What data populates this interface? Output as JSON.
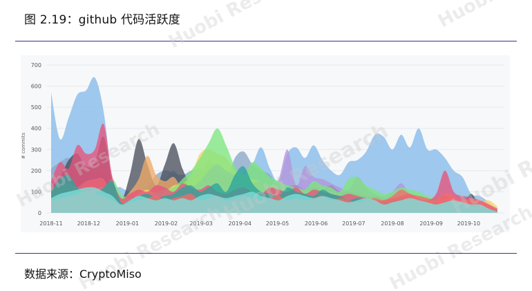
{
  "figure": {
    "title": "图 2.19：github 代码活跃度",
    "source": "数据来源：CryptoMiso",
    "watermark": "Huobi Research"
  },
  "chart_data": {
    "type": "area",
    "title": "",
    "xlabel": "",
    "ylabel": "# commits",
    "ylim": [
      0,
      700
    ],
    "yticks": [
      0,
      100,
      200,
      300,
      400,
      500,
      600,
      700
    ],
    "xticks": [
      "2018-11",
      "2018-12",
      "2019-01",
      "2019-02",
      "2019-03",
      "2019-04",
      "2019-05",
      "2019-06",
      "2019-07",
      "2019-08",
      "2019-09",
      "2019-10"
    ],
    "x": [
      "2018-11-01",
      "2018-11-08",
      "2018-11-15",
      "2018-11-22",
      "2018-11-29",
      "2018-12-06",
      "2018-12-13",
      "2018-12-20",
      "2018-12-27",
      "2019-01-03",
      "2019-01-10",
      "2019-01-17",
      "2019-01-24",
      "2019-01-31",
      "2019-02-07",
      "2019-02-14",
      "2019-02-21",
      "2019-02-28",
      "2019-03-07",
      "2019-03-14",
      "2019-03-21",
      "2019-03-28",
      "2019-04-04",
      "2019-04-11",
      "2019-04-18",
      "2019-04-25",
      "2019-05-02",
      "2019-05-09",
      "2019-05-16",
      "2019-05-23",
      "2019-05-30",
      "2019-06-06",
      "2019-06-13",
      "2019-06-20",
      "2019-06-27",
      "2019-07-04",
      "2019-07-11",
      "2019-07-18",
      "2019-07-25",
      "2019-08-01",
      "2019-08-08",
      "2019-08-15",
      "2019-08-22",
      "2019-08-29",
      "2019-09-05",
      "2019-09-12",
      "2019-09-19",
      "2019-09-26",
      "2019-10-03",
      "2019-10-10",
      "2019-10-17",
      "2019-10-24"
    ],
    "grid": true,
    "legend": "none",
    "series": [
      {
        "color": "#8ec0ea",
        "values": [
          570,
          350,
          450,
          560,
          580,
          640,
          480,
          160,
          120,
          100,
          90,
          110,
          130,
          160,
          200,
          150,
          160,
          180,
          210,
          200,
          190,
          170,
          190,
          230,
          310,
          210,
          150,
          280,
          310,
          260,
          320,
          250,
          200,
          180,
          240,
          250,
          290,
          370,
          360,
          300,
          370,
          310,
          400,
          300,
          300,
          260,
          200,
          170,
          90,
          80,
          50,
          10
        ]
      },
      {
        "color": "#8ba7c8",
        "values": [
          210,
          240,
          260,
          220,
          190,
          180,
          200,
          120,
          60,
          60,
          80,
          120,
          180,
          200,
          190,
          180,
          200,
          210,
          190,
          200,
          150,
          260,
          290,
          230,
          200,
          180,
          120,
          110,
          100,
          90,
          80,
          90,
          80,
          60,
          60,
          70,
          60,
          40,
          30,
          40,
          50,
          60,
          40,
          40,
          40,
          80,
          50,
          80,
          70,
          40,
          20,
          5
        ]
      },
      {
        "color": "#4a4f5e",
        "values": [
          120,
          170,
          250,
          280,
          220,
          240,
          360,
          150,
          60,
          180,
          350,
          230,
          130,
          230,
          330,
          210,
          130,
          120,
          100,
          150,
          130,
          90,
          80,
          110,
          90,
          80,
          100,
          120,
          130,
          110,
          120,
          110,
          130,
          100,
          100,
          90,
          80,
          80,
          70,
          60,
          60,
          70,
          80,
          70,
          60,
          80,
          60,
          40,
          90,
          30,
          10,
          0
        ]
      },
      {
        "color": "#f0a968",
        "values": [
          80,
          90,
          100,
          120,
          150,
          160,
          160,
          80,
          60,
          100,
          160,
          270,
          180,
          150,
          170,
          120,
          160,
          180,
          250,
          200,
          170,
          150,
          130,
          120,
          100,
          90,
          110,
          100,
          120,
          110,
          100,
          90,
          80,
          70,
          70,
          70,
          60,
          50,
          40,
          50,
          50,
          60,
          50,
          40,
          40,
          50,
          60,
          50,
          50,
          40,
          30,
          20
        ]
      },
      {
        "color": "#f2d66a",
        "values": [
          60,
          70,
          80,
          90,
          100,
          110,
          120,
          70,
          50,
          60,
          90,
          110,
          90,
          100,
          130,
          140,
          180,
          280,
          300,
          280,
          260,
          200,
          180,
          160,
          150,
          130,
          120,
          110,
          100,
          90,
          100,
          110,
          100,
          90,
          80,
          80,
          70,
          60,
          60,
          60,
          60,
          70,
          70,
          60,
          50,
          60,
          70,
          60,
          60,
          50,
          60,
          30
        ]
      },
      {
        "color": "#b395dc",
        "values": [
          50,
          60,
          70,
          80,
          90,
          100,
          110,
          60,
          40,
          50,
          70,
          90,
          80,
          90,
          100,
          110,
          120,
          150,
          200,
          230,
          200,
          180,
          160,
          140,
          150,
          130,
          160,
          300,
          130,
          220,
          170,
          160,
          140,
          120,
          110,
          170,
          120,
          90,
          80,
          100,
          140,
          90,
          80,
          70,
          60,
          70,
          80,
          60,
          60,
          50,
          40,
          20
        ]
      },
      {
        "color": "#7fe57f",
        "values": [
          120,
          130,
          140,
          120,
          110,
          100,
          110,
          160,
          90,
          70,
          80,
          90,
          100,
          110,
          120,
          160,
          200,
          260,
          330,
          400,
          320,
          220,
          180,
          240,
          210,
          170,
          150,
          130,
          120,
          110,
          150,
          130,
          120,
          100,
          160,
          170,
          130,
          110,
          90,
          100,
          120,
          110,
          100,
          80,
          70,
          60,
          50,
          40,
          40,
          30,
          20,
          10
        ]
      },
      {
        "color": "#e8537b",
        "values": [
          150,
          240,
          210,
          320,
          280,
          300,
          420,
          170,
          70,
          90,
          110,
          100,
          130,
          120,
          100,
          140,
          120,
          110,
          130,
          100,
          90,
          110,
          120,
          100,
          90,
          120,
          110,
          100,
          120,
          90,
          110,
          100,
          90,
          80,
          90,
          80,
          70,
          60,
          60,
          70,
          80,
          90,
          70,
          60,
          90,
          200,
          100,
          80,
          70,
          60,
          40,
          10
        ]
      },
      {
        "color": "#2aa59c",
        "values": [
          100,
          160,
          180,
          120,
          100,
          90,
          120,
          150,
          50,
          60,
          80,
          90,
          70,
          80,
          90,
          120,
          130,
          100,
          120,
          140,
          100,
          180,
          220,
          140,
          100,
          90,
          80,
          120,
          100,
          90,
          80,
          110,
          90,
          80,
          60,
          70,
          60,
          50,
          50,
          60,
          70,
          60,
          50,
          50,
          40,
          50,
          60,
          40,
          40,
          30,
          20,
          10
        ]
      },
      {
        "color": "#f36b6b",
        "values": [
          60,
          70,
          80,
          90,
          100,
          90,
          80,
          60,
          40,
          50,
          60,
          70,
          80,
          60,
          70,
          80,
          90,
          60,
          70,
          80,
          60,
          70,
          80,
          70,
          60,
          70,
          80,
          60,
          70,
          60,
          70,
          80,
          60,
          70,
          60,
          50,
          60,
          70,
          60,
          80,
          110,
          90,
          80,
          70,
          60,
          90,
          80,
          60,
          70,
          60,
          40,
          20
        ]
      },
      {
        "color": "#7ee0dc",
        "values": [
          70,
          90,
          100,
          110,
          120,
          120,
          100,
          80,
          40,
          60,
          80,
          70,
          60,
          70,
          60,
          70,
          60,
          80,
          90,
          80,
          70,
          80,
          90,
          100,
          80,
          70,
          60,
          80,
          90,
          80,
          70,
          80,
          70,
          60,
          50,
          60,
          70,
          60,
          40,
          50,
          60,
          70,
          60,
          50,
          40,
          50,
          60,
          50,
          40,
          40,
          20,
          5
        ]
      }
    ]
  }
}
